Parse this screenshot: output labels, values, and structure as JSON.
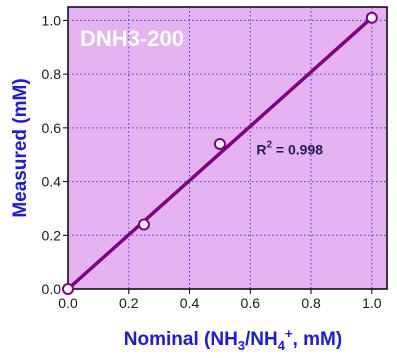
{
  "chart_data": {
    "type": "scatter",
    "title": "DNH3-200",
    "xlabel_parts": [
      "Nominal (NH",
      "3",
      "/NH",
      "4",
      "+",
      ", mM)"
    ],
    "ylabel": "Measured (mM)",
    "xlim": [
      0,
      1.05
    ],
    "ylim": [
      0,
      1.05
    ],
    "xticks": [
      0.0,
      0.2,
      0.4,
      0.6,
      0.8,
      1.0
    ],
    "yticks": [
      0.0,
      0.2,
      0.4,
      0.6,
      0.8,
      1.0
    ],
    "xtick_labels": [
      "0.0",
      "0.2",
      "0.4",
      "0.6",
      "0.8",
      "1.0"
    ],
    "ytick_labels": [
      "0.0",
      "0.2",
      "0.4",
      "0.6",
      "0.8",
      "1.0"
    ],
    "grid": true,
    "points": [
      {
        "x": 0.0,
        "y": 0.0
      },
      {
        "x": 0.25,
        "y": 0.24
      },
      {
        "x": 0.5,
        "y": 0.54
      },
      {
        "x": 1.0,
        "y": 1.01
      }
    ],
    "fit_line": {
      "x": [
        0.0,
        1.0
      ],
      "y": [
        0.0,
        1.01
      ]
    },
    "annotation": {
      "prefix": "R",
      "sup": "2",
      "suffix": " = 0.998",
      "x": 0.62,
      "y": 0.5
    },
    "colors": {
      "plot_bg": "#e6b3f2",
      "line": "#800080",
      "marker_edge": "#800080",
      "axis_title": "#1a1ae6",
      "grid": "#3a3adf"
    }
  }
}
